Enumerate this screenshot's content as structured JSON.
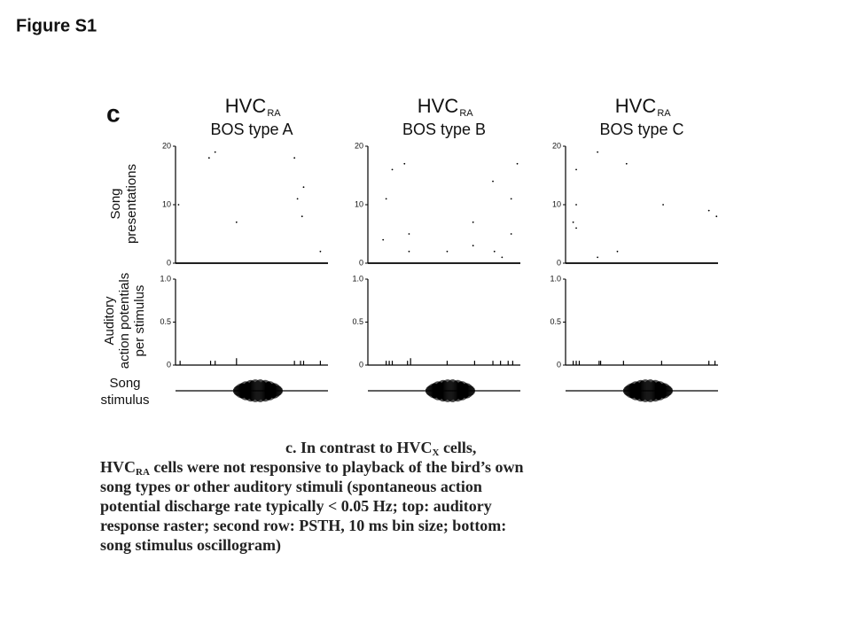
{
  "figure_label": "Figure S1",
  "panel_label": "c",
  "ylabels": {
    "raster": [
      "Song",
      "presentations"
    ],
    "psth": [
      "Auditory",
      "action potentials",
      "per stimulus"
    ],
    "stimulus": [
      "Song",
      "stimulus"
    ]
  },
  "chart_data": [
    {
      "type": "raster",
      "title": "HVC",
      "title_sub": "RA",
      "subtitle": "BOS type A",
      "ylim": [
        0,
        20
      ],
      "yticks": [
        0,
        10,
        20
      ],
      "x": [
        0.02,
        0.22,
        0.26,
        0.4,
        0.78,
        0.84,
        0.8,
        0.83,
        0.95
      ],
      "y": [
        10,
        18,
        19,
        7,
        18,
        13,
        11,
        8,
        2
      ]
    },
    {
      "type": "raster",
      "title": "HVC",
      "title_sub": "RA",
      "subtitle": "BOS type B",
      "ylim": [
        0,
        20
      ],
      "yticks": [
        0,
        10,
        20
      ],
      "x": [
        0.12,
        0.16,
        0.24,
        0.1,
        0.27,
        0.27,
        0.52,
        0.69,
        0.69,
        0.82,
        0.94,
        0.98,
        0.94,
        0.83,
        0.88
      ],
      "y": [
        11,
        16,
        17,
        4,
        5,
        2,
        2,
        7,
        3,
        14,
        11,
        17,
        5,
        2,
        1
      ]
    },
    {
      "type": "raster",
      "title": "HVC",
      "title_sub": "RA",
      "subtitle": "BOS type C",
      "ylim": [
        0,
        20
      ],
      "yticks": [
        0,
        10,
        20
      ],
      "x": [
        0.07,
        0.21,
        0.4,
        0.07,
        0.05,
        0.07,
        0.21,
        0.34,
        0.64,
        0.94,
        0.99
      ],
      "y": [
        16,
        19,
        17,
        10,
        7,
        6,
        1,
        2,
        10,
        9,
        8
      ]
    },
    {
      "type": "psth",
      "ylim": [
        0,
        1
      ],
      "yticks": [
        0,
        0.5,
        {
          "value": 1,
          "label": "1.0"
        }
      ],
      "x": [
        0.03,
        0.23,
        0.26,
        0.4,
        0.78,
        0.82,
        0.84,
        0.95
      ],
      "values": [
        0.05,
        0.05,
        0.05,
        0.08,
        0.05,
        0.05,
        0.05,
        0.05
      ]
    },
    {
      "type": "psth",
      "ylim": [
        0,
        1
      ],
      "yticks": [
        0,
        0.5,
        {
          "value": 1,
          "label": "1.0"
        }
      ],
      "x": [
        0.12,
        0.14,
        0.16,
        0.26,
        0.28,
        0.52,
        0.7,
        0.82,
        0.87,
        0.92,
        0.95
      ],
      "values": [
        0.05,
        0.05,
        0.05,
        0.05,
        0.08,
        0.05,
        0.05,
        0.05,
        0.05,
        0.05,
        0.05
      ]
    },
    {
      "type": "psth",
      "ylim": [
        0,
        1
      ],
      "yticks": [
        0,
        0.5,
        {
          "value": 1,
          "label": "1.0"
        }
      ],
      "x": [
        0.05,
        0.07,
        0.09,
        0.22,
        0.23,
        0.38,
        0.63,
        0.94,
        0.98
      ],
      "values": [
        0.05,
        0.05,
        0.05,
        0.05,
        0.05,
        0.05,
        0.05,
        0.05,
        0.05
      ]
    }
  ],
  "caption": {
    "lead": "c.  In contrast to HVC",
    "sub1": "X",
    "mid": " cells, HVC",
    "sub2": "RA",
    "rest": " cells were not responsive to playback of the bird’s own song types or other auditory stimuli (spontaneous action potential discharge rate typically < 0.05 Hz; top: auditory response raster; second row: PSTH, 10 ms bin size; bottom: song stimulus oscillogram)"
  }
}
